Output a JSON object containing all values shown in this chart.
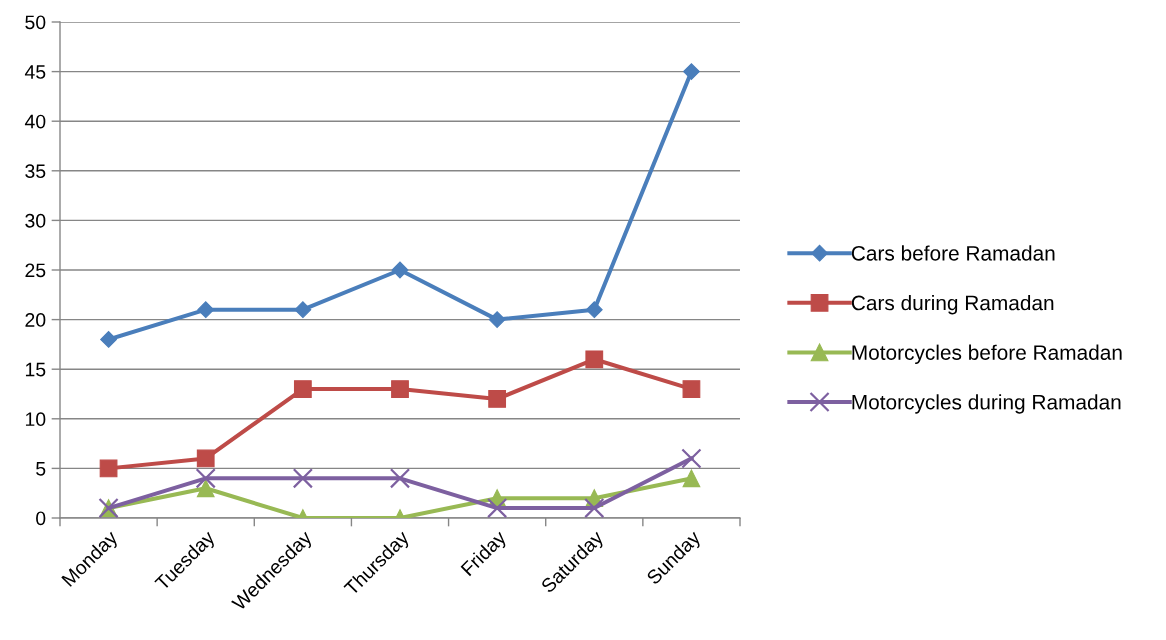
{
  "chart_data": {
    "type": "line",
    "categories": [
      "Monday",
      "Tuesday",
      "Wednesday",
      "Thursday",
      "Friday",
      "Saturday",
      "Sunday"
    ],
    "series": [
      {
        "name": "Cars before Ramadan",
        "color": "#4a7ebb",
        "marker": "diamond",
        "values": [
          18,
          21,
          21,
          25,
          20,
          21,
          45
        ]
      },
      {
        "name": "Cars during Ramadan",
        "color": "#be4b48",
        "marker": "square",
        "values": [
          5,
          6,
          13,
          13,
          12,
          16,
          13
        ]
      },
      {
        "name": "Motorcycles before Ramadan",
        "color": "#98b954",
        "marker": "triangle",
        "values": [
          1,
          3,
          0,
          0,
          2,
          2,
          4
        ]
      },
      {
        "name": "Motorcycles during Ramadan",
        "color": "#7d60a0",
        "marker": "cross",
        "values": [
          1,
          4,
          4,
          4,
          1,
          1,
          6
        ]
      }
    ],
    "ylim": [
      0,
      50
    ],
    "yticks": [
      0,
      5,
      10,
      15,
      20,
      25,
      30,
      35,
      40,
      45,
      50
    ],
    "grid": "y",
    "legend": "right",
    "line_style": "solid"
  }
}
